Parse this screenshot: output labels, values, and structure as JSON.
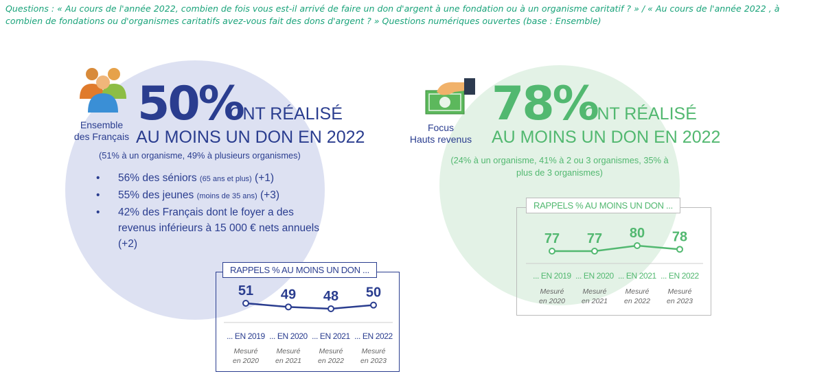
{
  "question": "Questions : « Au cours de l'année 2022, combien de fois vous est-il arrivé de faire un don d'argent à une fondation ou à un organisme caritatif ? » / « Au cours de l'année 2022 , à combien de fondations ou d'organismes caritatifs avez-vous fait des dons d'argent ? » Questions numériques ouvertes (base : Ensemble)",
  "left": {
    "icon": "people-group-icon",
    "caption_line1": "Ensemble",
    "caption_line2": "des Français",
    "big_percent": "50%",
    "headline_line1": "ONT RÉALISÉ",
    "headline_line2": "AU MOINS UN DON EN 2022",
    "detail": "(51% à un organisme, 49% à plusieurs organismes)",
    "bullets": [
      {
        "main": "56% des séniors",
        "small": "(65 ans et plus)",
        "tail": "(+1)"
      },
      {
        "main": "55% des jeunes",
        "small": "(moins de 35 ans)",
        "tail": "(+3)"
      },
      {
        "main": "42% des Français dont le foyer a des revenus inférieurs à 15 000 € nets annuels (+2)",
        "small": "",
        "tail": ""
      }
    ]
  },
  "right": {
    "icon": "hand-money-icon",
    "caption_line1": "Focus",
    "caption_line2": "Hauts revenus",
    "big_percent": "78%",
    "headline_line1": "ONT RÉALISÉ",
    "headline_line2": "AU MOINS UN DON EN 2022",
    "detail_line1": "(24% à un organisme, 41% à 2 ou 3 organismes, 35% à",
    "detail_line2": "plus de 3 organismes)"
  },
  "colors": {
    "blue": "#2a3d8f",
    "green": "#52b870",
    "question": "#1aa37a",
    "left_circle": "#dde1f2",
    "right_circle": "#e3f2e6"
  },
  "chart_data": [
    {
      "type": "line",
      "title": "RAPPELS % AU MOINS UN DON ...",
      "categories": [
        "... EN 2019",
        "... EN 2020",
        "... EN 2021",
        "... EN 2022"
      ],
      "sublabels": [
        "Mesuré\nen 2020",
        "Mesuré\nen 2021",
        "Mesuré\nen 2022",
        "Mesuré\nen 2023"
      ],
      "values": [
        51,
        49,
        48,
        50
      ],
      "color": "#2a3d8f"
    },
    {
      "type": "line",
      "title": "RAPPELS % AU MOINS UN DON ...",
      "categories": [
        "... EN 2019",
        "... EN 2020",
        "... EN 2021",
        "... EN 2022"
      ],
      "sublabels": [
        "Mesuré\nen 2020",
        "Mesuré\nen 2021",
        "Mesuré\nen 2022",
        "Mesuré\nen 2023"
      ],
      "values": [
        77,
        77,
        80,
        78
      ],
      "color": "#52b870"
    }
  ]
}
